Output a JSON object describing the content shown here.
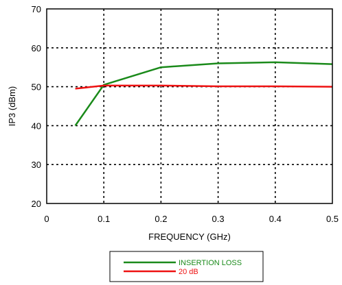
{
  "chart_data": {
    "type": "line",
    "title": "",
    "xlabel": "FREQUENCY (GHz)",
    "ylabel": "IP3 (dBm)",
    "xlim": [
      0,
      0.5
    ],
    "ylim": [
      20,
      70
    ],
    "xticks": [
      0,
      0.1,
      0.2,
      0.3,
      0.4,
      0.5
    ],
    "xtick_labels": [
      "0",
      "0.1",
      "0.2",
      "0.3",
      "0.4",
      "0.5"
    ],
    "yticks": [
      20,
      30,
      40,
      50,
      60,
      70
    ],
    "ytick_labels": [
      "20",
      "30",
      "40",
      "50",
      "60",
      "70"
    ],
    "grid": true,
    "grid_style": "dotted",
    "legend_position": "bottom-center",
    "series": [
      {
        "name": "INSERTION LOSS",
        "color": "#1a8a1a",
        "x": [
          0.05,
          0.1,
          0.2,
          0.3,
          0.4,
          0.5
        ],
        "y": [
          40,
          50.5,
          55,
          56,
          56.3,
          55.8
        ]
      },
      {
        "name": "20 dB",
        "color": "#ee1111",
        "x": [
          0.05,
          0.1,
          0.2,
          0.3,
          0.4,
          0.5
        ],
        "y": [
          49.5,
          50.3,
          50.3,
          50.1,
          50.1,
          50.0
        ]
      }
    ]
  }
}
